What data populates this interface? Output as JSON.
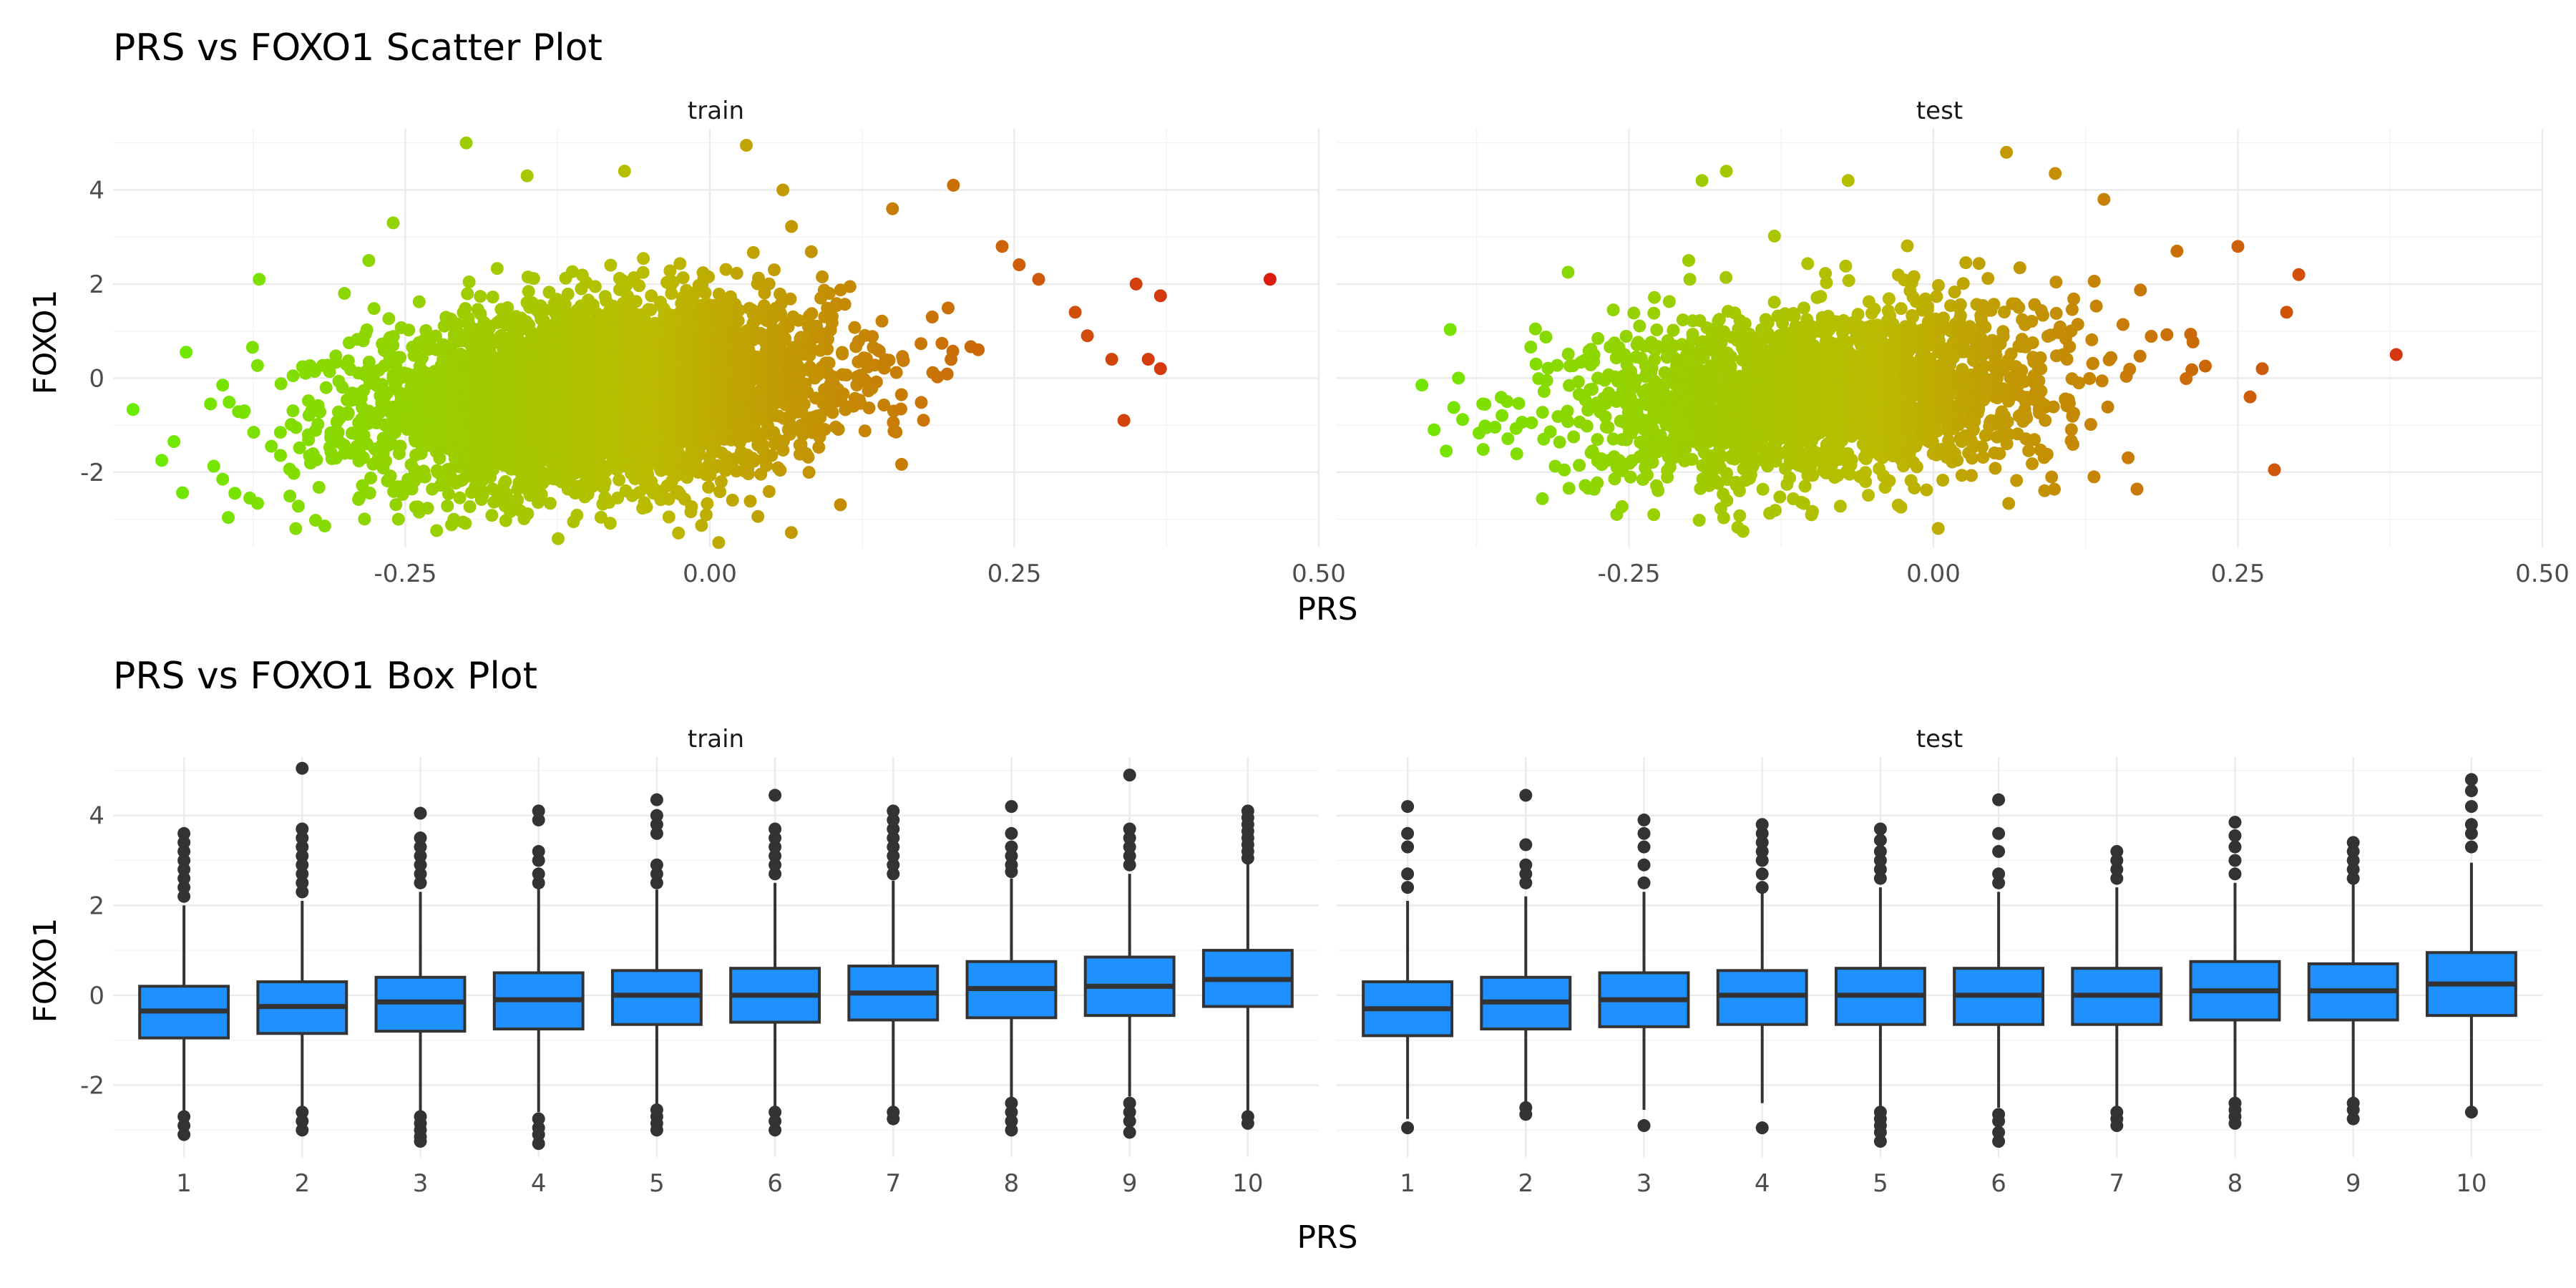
{
  "figure": {
    "top_title": "PRS vs FOXO1 Scatter Plot",
    "bottom_title": "PRS vs FOXO1 Box Plot",
    "ylabel": "FOXO1",
    "xlabel": "PRS"
  },
  "chart_data": [
    {
      "type": "scatter",
      "title": "PRS vs FOXO1 Scatter Plot",
      "xlabel": "PRS",
      "ylabel": "FOXO1",
      "facets": [
        "train",
        "test"
      ],
      "xlim": [
        -0.49,
        0.5
      ],
      "ylim": [
        -3.6,
        5.3
      ],
      "x_ticks": [
        -0.25,
        0.0,
        0.25,
        0.5
      ],
      "x_tick_labels": [
        "-0.25",
        "0.00",
        "0.25",
        "0.50"
      ],
      "y_ticks": [
        -2,
        0,
        2,
        4
      ],
      "y_tick_labels": [
        "-2",
        "0",
        "2",
        "4"
      ],
      "grid": true,
      "color_scale": {
        "low": "#66ee00",
        "mid": "#bbbb00",
        "high": "#dd1111",
        "mapped_to": "PRS"
      },
      "point_cloud": {
        "train": {
          "n": 4200,
          "x_mean": -0.09,
          "x_sd": 0.095,
          "y_mean": -0.35,
          "y_sd": 0.95,
          "slope": 2.0
        },
        "test": {
          "n": 2300,
          "x_mean": -0.09,
          "x_sd": 0.095,
          "y_mean": -0.3,
          "y_sd": 0.9,
          "slope": 2.0
        }
      },
      "series": [
        {
          "facet": "train",
          "points": [
            [
              -0.45,
              -1.75
            ],
            [
              -0.44,
              -1.35
            ],
            [
              -0.43,
              0.55
            ],
            [
              -0.41,
              -0.55
            ],
            [
              -0.4,
              -0.15
            ],
            [
              -0.4,
              -2.15
            ],
            [
              -0.39,
              -2.45
            ],
            [
              -0.37,
              2.1
            ],
            [
              -0.36,
              -1.45
            ],
            [
              -0.34,
              -3.2
            ],
            [
              -0.3,
              1.8
            ],
            [
              -0.28,
              2.5
            ],
            [
              -0.26,
              3.3
            ],
            [
              -0.2,
              5.0
            ],
            [
              -0.15,
              4.3
            ],
            [
              -0.07,
              4.4
            ],
            [
              0.03,
              4.95
            ],
            [
              0.06,
              4.0
            ],
            [
              0.15,
              3.6
            ],
            [
              0.2,
              4.1
            ],
            [
              0.24,
              2.8
            ],
            [
              0.27,
              2.1
            ],
            [
              0.3,
              1.4
            ],
            [
              0.31,
              0.9
            ],
            [
              0.33,
              0.4
            ],
            [
              0.34,
              -0.9
            ],
            [
              0.35,
              2.0
            ],
            [
              0.36,
              0.4
            ],
            [
              0.37,
              1.75
            ],
            [
              0.37,
              0.2
            ],
            [
              0.46,
              2.1
            ]
          ]
        },
        {
          "facet": "test",
          "points": [
            [
              -0.42,
              -0.15
            ],
            [
              -0.41,
              -1.1
            ],
            [
              -0.4,
              -1.55
            ],
            [
              -0.39,
              0.0
            ],
            [
              -0.37,
              -0.55
            ],
            [
              -0.35,
              -0.5
            ],
            [
              -0.33,
              -0.95
            ],
            [
              -0.32,
              -1.3
            ],
            [
              -0.3,
              2.25
            ],
            [
              -0.28,
              -1.55
            ],
            [
              -0.26,
              -2.9
            ],
            [
              -0.2,
              2.1
            ],
            [
              -0.19,
              4.2
            ],
            [
              -0.17,
              4.4
            ],
            [
              -0.07,
              4.2
            ],
            [
              0.06,
              4.8
            ],
            [
              0.1,
              4.35
            ],
            [
              0.14,
              3.8
            ],
            [
              0.2,
              2.7
            ],
            [
              0.25,
              2.8
            ],
            [
              0.26,
              -0.4
            ],
            [
              0.27,
              0.2
            ],
            [
              0.28,
              -1.95
            ],
            [
              0.29,
              1.4
            ],
            [
              0.3,
              2.2
            ],
            [
              0.38,
              0.5
            ]
          ]
        }
      ]
    },
    {
      "type": "box",
      "title": "PRS vs FOXO1 Box Plot",
      "xlabel": "PRS",
      "ylabel": "FOXO1",
      "facets": [
        "train",
        "test"
      ],
      "categories": [
        "1",
        "2",
        "3",
        "4",
        "5",
        "6",
        "7",
        "8",
        "9",
        "10"
      ],
      "ylim": [
        -3.6,
        5.3
      ],
      "y_ticks": [
        -2,
        0,
        2,
        4
      ],
      "y_tick_labels": [
        "-2",
        "0",
        "2",
        "4"
      ],
      "grid": true,
      "box_fill": "#1e90ff",
      "box_stroke": "#333333",
      "series": [
        {
          "name": "train",
          "boxes": [
            {
              "q1": -0.95,
              "median": -0.35,
              "q3": 0.2,
              "lo": -2.6,
              "hi": 2.0,
              "outliers": [
                2.2,
                2.4,
                2.6,
                2.8,
                3.0,
                3.2,
                3.4,
                3.6,
                -2.7,
                -2.9,
                -3.1
              ]
            },
            {
              "q1": -0.85,
              "median": -0.25,
              "q3": 0.3,
              "lo": -2.55,
              "hi": 2.1,
              "outliers": [
                2.3,
                2.5,
                2.7,
                2.9,
                3.1,
                3.3,
                3.5,
                3.7,
                5.05,
                -2.6,
                -2.8,
                -3.0
              ]
            },
            {
              "q1": -0.8,
              "median": -0.15,
              "q3": 0.4,
              "lo": -2.6,
              "hi": 2.3,
              "outliers": [
                2.5,
                2.7,
                2.9,
                3.1,
                3.3,
                3.5,
                4.05,
                -2.7,
                -2.85,
                -3.0,
                -3.15,
                -3.25
              ]
            },
            {
              "q1": -0.75,
              "median": -0.1,
              "q3": 0.5,
              "lo": -2.6,
              "hi": 2.4,
              "outliers": [
                2.5,
                2.7,
                3.0,
                3.2,
                3.9,
                4.1,
                -2.75,
                -2.95,
                -3.1,
                -3.3
              ]
            },
            {
              "q1": -0.65,
              "median": 0.0,
              "q3": 0.55,
              "lo": -2.45,
              "hi": 2.35,
              "outliers": [
                2.5,
                2.7,
                2.9,
                3.6,
                3.8,
                4.0,
                4.35,
                -2.55,
                -2.7,
                -2.85,
                -3.0
              ]
            },
            {
              "q1": -0.6,
              "median": 0.0,
              "q3": 0.6,
              "lo": -2.5,
              "hi": 2.5,
              "outliers": [
                2.7,
                2.9,
                3.1,
                3.3,
                3.5,
                3.7,
                4.45,
                -2.6,
                -2.8,
                -3.0
              ]
            },
            {
              "q1": -0.55,
              "median": 0.05,
              "q3": 0.65,
              "lo": -2.55,
              "hi": 2.55,
              "outliers": [
                2.7,
                2.9,
                3.1,
                3.3,
                3.5,
                3.7,
                3.9,
                4.1,
                -2.6,
                -2.75
              ]
            },
            {
              "q1": -0.5,
              "median": 0.15,
              "q3": 0.75,
              "lo": -2.3,
              "hi": 2.6,
              "outliers": [
                2.75,
                2.9,
                3.1,
                3.3,
                3.6,
                4.2,
                -2.4,
                -2.6,
                -2.8,
                -3.0
              ]
            },
            {
              "q1": -0.45,
              "median": 0.2,
              "q3": 0.85,
              "lo": -2.25,
              "hi": 2.7,
              "outliers": [
                2.9,
                3.1,
                3.3,
                3.5,
                3.7,
                4.9,
                -2.4,
                -2.6,
                -2.8,
                -3.05
              ]
            },
            {
              "q1": -0.25,
              "median": 0.35,
              "q3": 1.0,
              "lo": -2.65,
              "hi": 2.95,
              "outliers": [
                3.05,
                3.2,
                3.35,
                3.5,
                3.65,
                3.8,
                3.95,
                4.1,
                -2.7,
                -2.85
              ]
            }
          ]
        },
        {
          "name": "test",
          "boxes": [
            {
              "q1": -0.9,
              "median": -0.3,
              "q3": 0.3,
              "lo": -2.75,
              "hi": 2.1,
              "outliers": [
                2.4,
                2.7,
                3.3,
                3.6,
                4.2,
                -2.95
              ]
            },
            {
              "q1": -0.75,
              "median": -0.15,
              "q3": 0.4,
              "lo": -2.4,
              "hi": 2.2,
              "outliers": [
                2.5,
                2.7,
                2.9,
                3.35,
                4.45,
                -2.5,
                -2.65
              ]
            },
            {
              "q1": -0.7,
              "median": -0.1,
              "q3": 0.5,
              "lo": -2.55,
              "hi": 2.3,
              "outliers": [
                2.5,
                2.9,
                3.3,
                3.6,
                3.9,
                -2.9
              ]
            },
            {
              "q1": -0.65,
              "median": 0.0,
              "q3": 0.55,
              "lo": -2.4,
              "hi": 2.3,
              "outliers": [
                2.4,
                2.7,
                3.0,
                3.2,
                3.4,
                3.6,
                3.8,
                -2.95
              ]
            },
            {
              "q1": -0.65,
              "median": 0.0,
              "q3": 0.6,
              "lo": -2.5,
              "hi": 2.4,
              "outliers": [
                2.6,
                2.8,
                3.0,
                3.2,
                3.45,
                3.7,
                -2.6,
                -2.75,
                -2.9,
                -3.05,
                -3.25
              ]
            },
            {
              "q1": -0.65,
              "median": 0.0,
              "q3": 0.6,
              "lo": -2.5,
              "hi": 2.3,
              "outliers": [
                2.5,
                2.7,
                3.2,
                3.6,
                4.35,
                -2.65,
                -2.8,
                -3.05,
                -3.25
              ]
            },
            {
              "q1": -0.65,
              "median": 0.0,
              "q3": 0.6,
              "lo": -2.5,
              "hi": 2.4,
              "outliers": [
                2.6,
                2.8,
                3.0,
                3.2,
                -2.6,
                -2.75,
                -2.9
              ]
            },
            {
              "q1": -0.55,
              "median": 0.1,
              "q3": 0.75,
              "lo": -2.3,
              "hi": 2.5,
              "outliers": [
                2.7,
                3.0,
                3.3,
                3.55,
                3.85,
                -2.4,
                -2.55,
                -2.7,
                -2.85
              ]
            },
            {
              "q1": -0.55,
              "median": 0.1,
              "q3": 0.7,
              "lo": -2.3,
              "hi": 2.5,
              "outliers": [
                2.6,
                2.8,
                3.0,
                3.2,
                3.4,
                -2.4,
                -2.55,
                -2.75
              ]
            },
            {
              "q1": -0.45,
              "median": 0.25,
              "q3": 0.95,
              "lo": -2.55,
              "hi": 2.95,
              "outliers": [
                3.3,
                3.6,
                3.8,
                4.2,
                4.55,
                4.8,
                -2.6
              ]
            }
          ]
        }
      ]
    }
  ]
}
